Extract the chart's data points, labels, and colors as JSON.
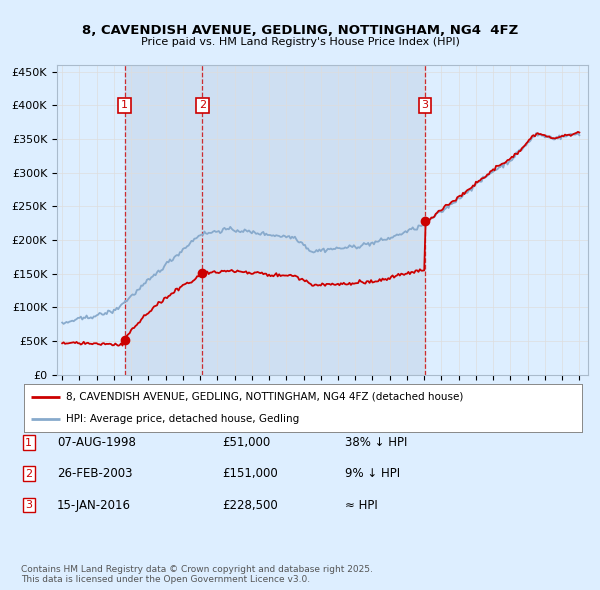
{
  "title": "8, CAVENDISH AVENUE, GEDLING, NOTTINGHAM, NG4  4FZ",
  "subtitle": "Price paid vs. HM Land Registry's House Price Index (HPI)",
  "sale_prices": [
    51000,
    151000,
    228500
  ],
  "sale_labels": [
    "1",
    "2",
    "3"
  ],
  "sale_years": [
    1998.625,
    2003.125,
    2016.042
  ],
  "ylabel_ticks": [
    0,
    50000,
    100000,
    150000,
    200000,
    250000,
    300000,
    350000,
    400000,
    450000
  ],
  "ylabel_labels": [
    "£0",
    "£50K",
    "£100K",
    "£150K",
    "£200K",
    "£250K",
    "£300K",
    "£350K",
    "£400K",
    "£450K"
  ],
  "xlim": [
    1994.7,
    2025.5
  ],
  "ylim": [
    0,
    460000
  ],
  "red_color": "#cc0000",
  "blue_color": "#88aacc",
  "shade_color": "#ccddf0",
  "background_color": "#ddeeff",
  "plot_bg_color": "#ddeeff",
  "grid_color": "#bbccdd",
  "grid_color2": "#dddddd",
  "legend_entry1": "8, CAVENDISH AVENUE, GEDLING, NOTTINGHAM, NG4 4FZ (detached house)",
  "legend_entry2": "HPI: Average price, detached house, Gedling",
  "table_rows": [
    [
      "1",
      "07-AUG-1998",
      "£51,000",
      "38% ↓ HPI"
    ],
    [
      "2",
      "26-FEB-2003",
      "£151,000",
      "9% ↓ HPI"
    ],
    [
      "3",
      "15-JAN-2016",
      "£228,500",
      "≈ HPI"
    ]
  ],
  "footer": "Contains HM Land Registry data © Crown copyright and database right 2025.\nThis data is licensed under the Open Government Licence v3.0."
}
